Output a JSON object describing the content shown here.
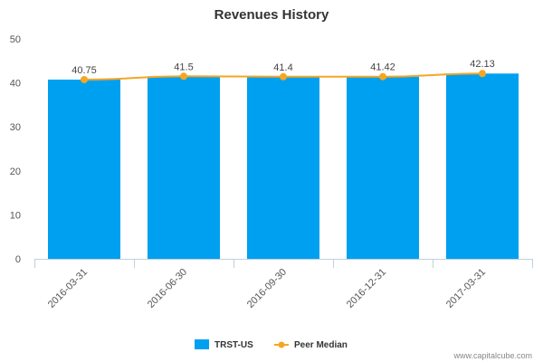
{
  "chart_data": {
    "type": "bar",
    "title": "Revenues History",
    "categories": [
      "2016-03-31",
      "2016-06-30",
      "2016-09-30",
      "2016-12-31",
      "2017-03-31"
    ],
    "series": [
      {
        "name": "TRST-US",
        "type": "bar",
        "color": "#00a0f0",
        "values": [
          40.75,
          41.5,
          41.4,
          41.42,
          42.13
        ]
      },
      {
        "name": "Peer Median",
        "type": "line",
        "color": "#f5a623",
        "values": [
          40.75,
          41.5,
          41.4,
          41.42,
          42.13
        ]
      }
    ],
    "data_labels": [
      "40.75",
      "41.5",
      "41.4",
      "41.42",
      "42.13"
    ],
    "yticks": [
      "0",
      "10",
      "20",
      "30",
      "40",
      "50"
    ],
    "ylim": [
      0,
      50
    ],
    "grid": false,
    "legend_position": "bottom-center",
    "credit": "www.capitalcube.com"
  }
}
